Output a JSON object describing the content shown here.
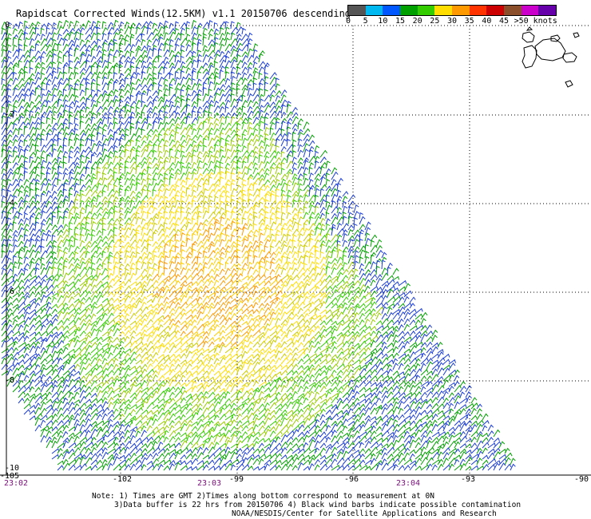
{
  "title": "Rapidscat Corrected Winds(12.5KM) v1.1 20150706 descending",
  "colorbar": {
    "labels": [
      "0",
      "5",
      "10",
      "15",
      "20",
      "25",
      "30",
      "35",
      "40",
      "45",
      ">50 knots"
    ],
    "colors": [
      "#555555",
      "#00b8f0",
      "#0057ff",
      "#00a000",
      "#33cc00",
      "#ffdd00",
      "#ff9900",
      "#ff3300",
      "#cc0000",
      "#8a4f2a",
      "#cc00cc",
      "#6600aa"
    ]
  },
  "map": {
    "lon_ticks": [
      "-105",
      "-102",
      "-99",
      "-96",
      "-93",
      "-90"
    ],
    "lat_ticks": [
      "0",
      "-2",
      "-4",
      "-6",
      "-8",
      "-10"
    ],
    "times": [
      "23:02",
      "23:03",
      "23:04"
    ]
  },
  "notes": {
    "line1": "Note: 1) Times are GMT 2)Times along bottom correspond to measurement at 0N",
    "line2": "3)Data buffer is 22 hrs from 20150706 4) Black wind barbs indicate possible contamination",
    "line3": "NOAA/NESDIS/Center for Satellite Applications and Research"
  }
}
